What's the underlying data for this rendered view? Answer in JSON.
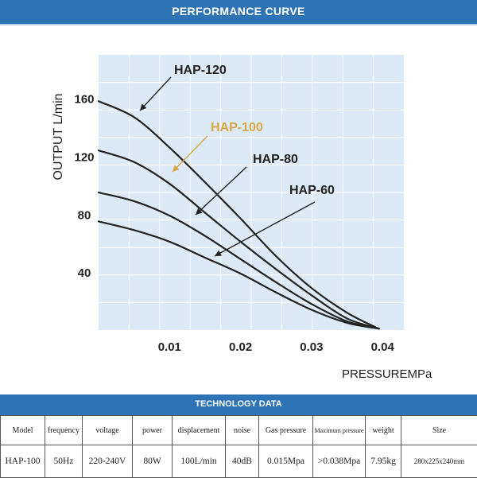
{
  "header": {
    "title": "PERFORMANCE CURVE"
  },
  "chart_data": {
    "type": "line",
    "title": "",
    "xlabel": "PRESSUREMPa",
    "ylabel": "OUTPUT L/min",
    "xlim": [
      0,
      0.043
    ],
    "ylim": [
      0,
      190
    ],
    "xticks": [
      0.01,
      0.02,
      0.03,
      0.04
    ],
    "xtick_labels": [
      "0.01",
      "0.02",
      "0.03",
      "0.04"
    ],
    "yticks": [
      40,
      80,
      120,
      160
    ],
    "ytick_labels": [
      "40",
      "80",
      "120",
      "160"
    ],
    "grid": true,
    "background_color": "#dbeaf6",
    "grid_color": "#ffffff",
    "line_color": "#222222",
    "series": [
      {
        "name": "HAP-120",
        "label_color": "#222222",
        "x": [
          0.0,
          0.005,
          0.01,
          0.015,
          0.02,
          0.025,
          0.03,
          0.035,
          0.039
        ],
        "y": [
          158,
          147,
          126,
          102,
          77,
          51,
          29,
          12,
          2
        ]
      },
      {
        "name": "HAP-100",
        "label_color": "#d9a441",
        "x": [
          0.0,
          0.005,
          0.01,
          0.015,
          0.02,
          0.025,
          0.03,
          0.035,
          0.0395
        ],
        "y": [
          124,
          116,
          101,
          81,
          61,
          42,
          24,
          8,
          1
        ]
      },
      {
        "name": "HAP-80",
        "label_color": "#222222",
        "x": [
          0.0,
          0.005,
          0.01,
          0.015,
          0.02,
          0.025,
          0.03,
          0.035,
          0.0395
        ],
        "y": [
          95,
          89,
          79,
          65,
          49,
          33,
          18,
          6,
          1
        ]
      },
      {
        "name": "HAP-60",
        "label_color": "#222222",
        "x": [
          0.0,
          0.005,
          0.01,
          0.015,
          0.02,
          0.025,
          0.03,
          0.035,
          0.0395
        ],
        "y": [
          75,
          69,
          61,
          50,
          39,
          26,
          14,
          5,
          1
        ]
      }
    ]
  },
  "tech": {
    "title": "TECHNOLOGY DATA",
    "headers": [
      "Model",
      "frequency",
      "voltage",
      "power",
      "displacement",
      "noise",
      "Gas pressure",
      "Maximum pressure",
      "weight",
      "Size"
    ],
    "values": [
      "HAP-100",
      "50Hz",
      "220-240V",
      "80W",
      "100L/min",
      "40dB",
      "0.015Mpa",
      ">0.038Mpa",
      "7.95kg",
      "280x225x240mm"
    ]
  }
}
